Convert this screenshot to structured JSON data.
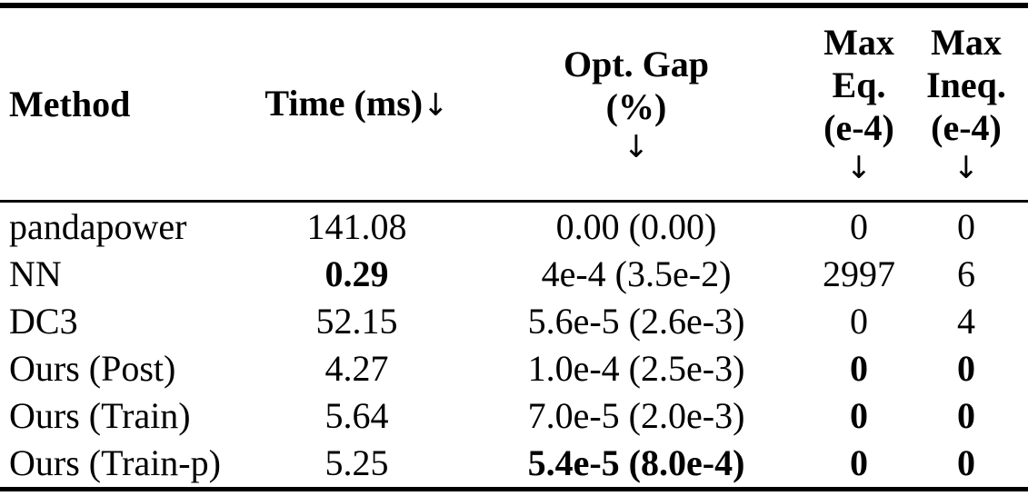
{
  "colors": {
    "text": "#000000",
    "background": "#ffffff",
    "rule": "#000000"
  },
  "header": {
    "method": "Method",
    "time": {
      "label": "Time (ms)",
      "arrow": "↓"
    },
    "opt_gap": {
      "line1": "Opt. Gap",
      "line2": "(%)",
      "arrow": "↓"
    },
    "max_eq": {
      "line1": "Max",
      "line2": "Eq.",
      "line3": "(e-4)",
      "arrow": "↓"
    },
    "max_ineq": {
      "line1": "Max",
      "line2": "Ineq.",
      "line3": "(e-4)",
      "arrow": "↓"
    }
  },
  "rows": [
    {
      "method": "pandapower",
      "time": {
        "text": "141.08",
        "bold": false
      },
      "opt_gap": {
        "text": "0.00 (0.00)",
        "bold": false
      },
      "max_eq": {
        "text": "0",
        "bold": false
      },
      "max_ineq": {
        "text": "0",
        "bold": false
      }
    },
    {
      "method": "NN",
      "time": {
        "text": "0.29",
        "bold": true
      },
      "opt_gap": {
        "text": "4e-4 (3.5e-2)",
        "bold": false
      },
      "max_eq": {
        "text": "2997",
        "bold": false
      },
      "max_ineq": {
        "text": "6",
        "bold": false
      }
    },
    {
      "method": "DC3",
      "time": {
        "text": "52.15",
        "bold": false
      },
      "opt_gap": {
        "text": "5.6e-5 (2.6e-3)",
        "bold": false
      },
      "max_eq": {
        "text": "0",
        "bold": false
      },
      "max_ineq": {
        "text": "4",
        "bold": false
      }
    },
    {
      "method": "Ours (Post)",
      "time": {
        "text": "4.27",
        "bold": false
      },
      "opt_gap": {
        "text": "1.0e-4 (2.5e-3)",
        "bold": false
      },
      "max_eq": {
        "text": "0",
        "bold": true
      },
      "max_ineq": {
        "text": "0",
        "bold": true
      }
    },
    {
      "method": "Ours (Train)",
      "time": {
        "text": "5.64",
        "bold": false
      },
      "opt_gap": {
        "text": "7.0e-5 (2.0e-3)",
        "bold": false
      },
      "max_eq": {
        "text": "0",
        "bold": true
      },
      "max_ineq": {
        "text": "0",
        "bold": true
      }
    },
    {
      "method": "Ours (Train-p)",
      "time": {
        "text": "5.25",
        "bold": false
      },
      "opt_gap": {
        "text": "5.4e-5 (8.0e-4)",
        "bold": true
      },
      "max_eq": {
        "text": "0",
        "bold": true
      },
      "max_ineq": {
        "text": "0",
        "bold": true
      }
    }
  ]
}
